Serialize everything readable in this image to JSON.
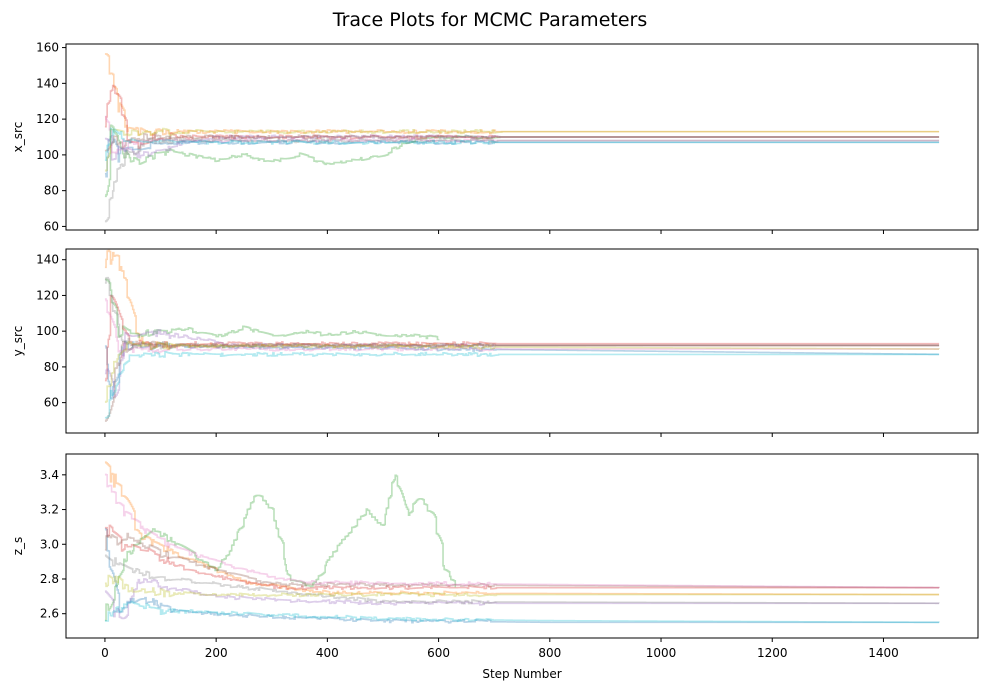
{
  "figure": {
    "title": "Trace Plots for MCMC Parameters"
  },
  "palette": [
    "#1f77b4",
    "#ff7f0e",
    "#2ca02c",
    "#d62728",
    "#9467bd",
    "#8c564b",
    "#e377c2",
    "#7f7f7f",
    "#bcbd22",
    "#17becf"
  ],
  "chart_data": [
    {
      "type": "line",
      "ylabel": "x_src",
      "xlabel": "",
      "xlim": [
        -70,
        1570
      ],
      "ylim": [
        58,
        162
      ],
      "xticks": [
        0,
        200,
        400,
        600,
        800,
        1000,
        1200,
        1400
      ],
      "yticks": [
        60,
        80,
        100,
        120,
        140,
        160
      ],
      "show_xtick_labels": false,
      "n_steps": 1500,
      "series": [
        {
          "color": "#1f77b4",
          "knots": [
            [
              0,
              85
            ],
            [
              10,
              118
            ],
            [
              20,
              97
            ],
            [
              35,
              105
            ],
            [
              60,
              103
            ],
            [
              100,
              107
            ],
            [
              1500,
              107
            ]
          ]
        },
        {
          "color": "#ff7f0e",
          "knots": [
            [
              0,
              158
            ],
            [
              12,
              145
            ],
            [
              25,
              125
            ],
            [
              40,
              115
            ],
            [
              70,
              112
            ],
            [
              110,
              113
            ],
            [
              1500,
              113
            ]
          ]
        },
        {
          "color": "#2ca02c",
          "knots": [
            [
              0,
              75
            ],
            [
              10,
              115
            ],
            [
              30,
              100
            ],
            [
              60,
              96
            ],
            [
              100,
              102
            ],
            [
              150,
              100
            ],
            [
              200,
              97
            ],
            [
              250,
              100
            ],
            [
              300,
              96
            ],
            [
              350,
              100
            ],
            [
              400,
              95
            ],
            [
              450,
              97
            ],
            [
              500,
              100
            ],
            [
              540,
              107
            ],
            [
              580,
              110
            ],
            [
              1500,
              110
            ]
          ]
        },
        {
          "color": "#d62728",
          "knots": [
            [
              0,
              120
            ],
            [
              10,
              140
            ],
            [
              25,
              130
            ],
            [
              40,
              110
            ],
            [
              60,
              105
            ],
            [
              90,
              110
            ],
            [
              1500,
              110
            ]
          ]
        },
        {
          "color": "#9467bd",
          "knots": [
            [
              0,
              110
            ],
            [
              15,
              98
            ],
            [
              35,
              104
            ],
            [
              60,
              100
            ],
            [
              100,
              103
            ],
            [
              150,
              108
            ],
            [
              200,
              110
            ],
            [
              1500,
              110
            ]
          ]
        },
        {
          "color": "#8c564b",
          "knots": [
            [
              0,
              100
            ],
            [
              10,
              112
            ],
            [
              30,
              108
            ],
            [
              60,
              110
            ],
            [
              1500,
              110
            ]
          ]
        },
        {
          "color": "#e377c2",
          "knots": [
            [
              0,
              125
            ],
            [
              15,
              100
            ],
            [
              35,
              105
            ],
            [
              70,
              108
            ],
            [
              1500,
              108
            ]
          ]
        },
        {
          "color": "#7f7f7f",
          "knots": [
            [
              0,
              63
            ],
            [
              10,
              75
            ],
            [
              25,
              95
            ],
            [
              40,
              100
            ],
            [
              80,
              108
            ],
            [
              1500,
              108
            ]
          ]
        },
        {
          "color": "#bcbd22",
          "knots": [
            [
              0,
              88
            ],
            [
              10,
              115
            ],
            [
              30,
              112
            ],
            [
              60,
              113
            ],
            [
              1500,
              113
            ]
          ]
        },
        {
          "color": "#17becf",
          "knots": [
            [
              0,
              100
            ],
            [
              10,
              112
            ],
            [
              30,
              108
            ],
            [
              60,
              107
            ],
            [
              1500,
              107
            ]
          ]
        }
      ]
    },
    {
      "type": "line",
      "ylabel": "y_src",
      "xlabel": "",
      "xlim": [
        -70,
        1570
      ],
      "ylim": [
        43,
        146
      ],
      "xticks": [
        0,
        200,
        400,
        600,
        800,
        1000,
        1200,
        1400
      ],
      "yticks": [
        60,
        80,
        100,
        120,
        140
      ],
      "show_xtick_labels": false,
      "n_steps": 1500,
      "series": [
        {
          "color": "#1f77b4",
          "knots": [
            [
              0,
              90
            ],
            [
              12,
              60
            ],
            [
              25,
              88
            ],
            [
              50,
              92
            ],
            [
              1500,
              87
            ]
          ]
        },
        {
          "color": "#ff7f0e",
          "knots": [
            [
              0,
              140
            ],
            [
              20,
              144
            ],
            [
              35,
              130
            ],
            [
              50,
              100
            ],
            [
              80,
              92
            ],
            [
              1500,
              92
            ]
          ]
        },
        {
          "color": "#2ca02c",
          "knots": [
            [
              0,
              130
            ],
            [
              10,
              120
            ],
            [
              25,
              100
            ],
            [
              60,
              98
            ],
            [
              100,
              100
            ],
            [
              150,
              101
            ],
            [
              200,
              97
            ],
            [
              250,
              102
            ],
            [
              300,
              97
            ],
            [
              350,
              100
            ],
            [
              400,
              98
            ],
            [
              450,
              100
            ],
            [
              500,
              97
            ],
            [
              550,
              98
            ],
            [
              600,
              96
            ]
          ]
        },
        {
          "color": "#d62728",
          "knots": [
            [
              0,
              70
            ],
            [
              10,
              120
            ],
            [
              25,
              100
            ],
            [
              50,
              93
            ],
            [
              1500,
              93
            ]
          ]
        },
        {
          "color": "#9467bd",
          "knots": [
            [
              0,
              80
            ],
            [
              15,
              60
            ],
            [
              35,
              95
            ],
            [
              70,
              100
            ],
            [
              120,
              98
            ],
            [
              180,
              95
            ],
            [
              220,
              92
            ],
            [
              1500,
              92
            ]
          ]
        },
        {
          "color": "#8c564b",
          "knots": [
            [
              0,
              50
            ],
            [
              15,
              75
            ],
            [
              30,
              92
            ],
            [
              1500,
              92
            ]
          ]
        },
        {
          "color": "#e377c2",
          "knots": [
            [
              0,
              115
            ],
            [
              15,
              95
            ],
            [
              30,
              90
            ],
            [
              1500,
              90
            ]
          ]
        },
        {
          "color": "#7f7f7f",
          "knots": [
            [
              0,
              130
            ],
            [
              10,
              120
            ],
            [
              30,
              95
            ],
            [
              70,
              92
            ],
            [
              1500,
              92
            ]
          ]
        },
        {
          "color": "#bcbd22",
          "knots": [
            [
              0,
              60
            ],
            [
              15,
              80
            ],
            [
              30,
              92
            ],
            [
              1500,
              90
            ]
          ]
        },
        {
          "color": "#17becf",
          "knots": [
            [
              0,
              48
            ],
            [
              15,
              70
            ],
            [
              35,
              85
            ],
            [
              60,
              87
            ],
            [
              1500,
              87
            ]
          ]
        }
      ]
    },
    {
      "type": "line",
      "ylabel": "z_s",
      "xlabel": "Step Number",
      "xlim": [
        -70,
        1570
      ],
      "ylim": [
        2.46,
        3.52
      ],
      "xticks": [
        0,
        200,
        400,
        600,
        800,
        1000,
        1200,
        1400
      ],
      "yticks": [
        2.6,
        2.8,
        3.0,
        3.2,
        3.4
      ],
      "show_xtick_labels": true,
      "n_steps": 1500,
      "series": [
        {
          "color": "#1f77b4",
          "knots": [
            [
              0,
              3.1
            ],
            [
              20,
              2.6
            ],
            [
              60,
              2.7
            ],
            [
              120,
              2.62
            ],
            [
              200,
              2.6
            ],
            [
              300,
              2.58
            ],
            [
              500,
              2.56
            ],
            [
              800,
              2.55
            ],
            [
              1500,
              2.55
            ]
          ]
        },
        {
          "color": "#ff7f0e",
          "knots": [
            [
              0,
              3.45
            ],
            [
              30,
              3.3
            ],
            [
              60,
              3.05
            ],
            [
              120,
              2.95
            ],
            [
              200,
              2.85
            ],
            [
              260,
              2.78
            ],
            [
              400,
              2.72
            ],
            [
              1500,
              2.71
            ]
          ]
        },
        {
          "color": "#2ca02c",
          "knots": [
            [
              0,
              2.6
            ],
            [
              30,
              2.9
            ],
            [
              80,
              3.1
            ],
            [
              150,
              2.95
            ],
            [
              200,
              2.85
            ],
            [
              230,
              3.0
            ],
            [
              270,
              3.3
            ],
            [
              300,
              3.2
            ],
            [
              330,
              2.8
            ],
            [
              370,
              2.75
            ],
            [
              420,
              3.0
            ],
            [
              470,
              3.2
            ],
            [
              500,
              3.1
            ],
            [
              520,
              3.43
            ],
            [
              540,
              3.1
            ],
            [
              560,
              3.3
            ],
            [
              590,
              3.15
            ],
            [
              610,
              2.85
            ],
            [
              630,
              2.76
            ]
          ]
        },
        {
          "color": "#d62728",
          "knots": [
            [
              0,
              3.1
            ],
            [
              30,
              3.0
            ],
            [
              80,
              2.95
            ],
            [
              150,
              2.85
            ],
            [
              250,
              2.78
            ],
            [
              320,
              2.75
            ],
            [
              1500,
              2.75
            ]
          ]
        },
        {
          "color": "#9467bd",
          "knots": [
            [
              0,
              2.7
            ],
            [
              30,
              2.55
            ],
            [
              60,
              2.8
            ],
            [
              120,
              2.75
            ],
            [
              200,
              2.7
            ],
            [
              300,
              2.68
            ],
            [
              500,
              2.66
            ],
            [
              1500,
              2.66
            ]
          ]
        },
        {
          "color": "#8c564b",
          "knots": [
            [
              0,
              3.0
            ],
            [
              40,
              3.05
            ],
            [
              100,
              2.95
            ],
            [
              200,
              2.85
            ],
            [
              300,
              2.77
            ],
            [
              1500,
              2.75
            ]
          ]
        },
        {
          "color": "#e377c2",
          "knots": [
            [
              0,
              3.4
            ],
            [
              30,
              3.2
            ],
            [
              80,
              3.05
            ],
            [
              150,
              2.95
            ],
            [
              250,
              2.85
            ],
            [
              350,
              2.78
            ],
            [
              1500,
              2.75
            ]
          ]
        },
        {
          "color": "#7f7f7f",
          "knots": [
            [
              0,
              2.9
            ],
            [
              40,
              2.85
            ],
            [
              120,
              2.8
            ],
            [
              250,
              2.75
            ],
            [
              500,
              2.67
            ],
            [
              1500,
              2.66
            ]
          ]
        },
        {
          "color": "#bcbd22",
          "knots": [
            [
              0,
              2.8
            ],
            [
              40,
              2.75
            ],
            [
              100,
              2.72
            ],
            [
              200,
              2.71
            ],
            [
              1500,
              2.71
            ]
          ]
        },
        {
          "color": "#17becf",
          "knots": [
            [
              0,
              2.55
            ],
            [
              40,
              2.65
            ],
            [
              100,
              2.62
            ],
            [
              250,
              2.6
            ],
            [
              500,
              2.57
            ],
            [
              800,
              2.56
            ],
            [
              1500,
              2.55
            ]
          ]
        }
      ]
    }
  ]
}
